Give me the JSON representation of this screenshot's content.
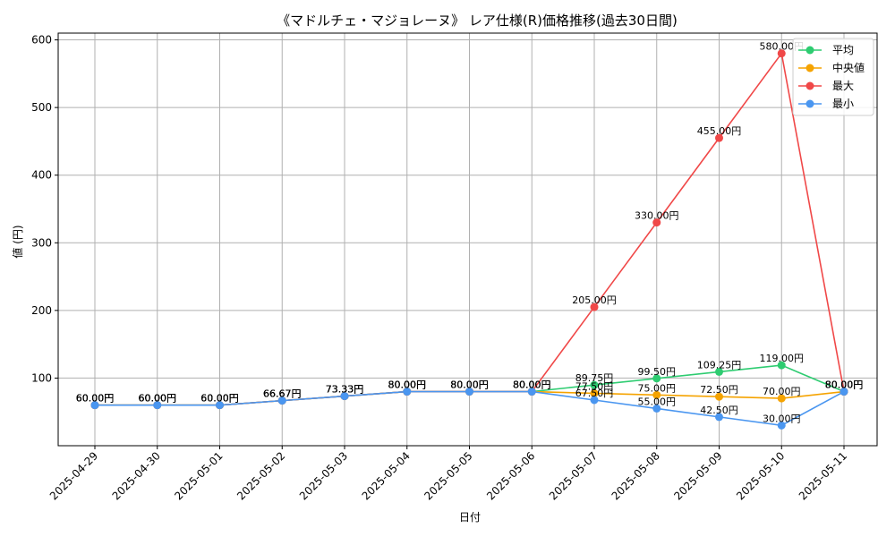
{
  "chart_data": {
    "type": "line",
    "title": "《マドルチェ・マジョレーヌ》 レア仕様(R)価格推移(過去30日間)",
    "xlabel": "日付",
    "ylabel": "値 (円)",
    "categories": [
      "2025-04-29",
      "2025-04-30",
      "2025-05-01",
      "2025-05-02",
      "2025-05-03",
      "2025-05-04",
      "2025-05-05",
      "2025-05-06",
      "2025-05-07",
      "2025-05-08",
      "2025-05-09",
      "2025-05-10",
      "2025-05-11"
    ],
    "ylim": [
      0,
      610
    ],
    "yticks": [
      100,
      200,
      300,
      400,
      500,
      600
    ],
    "grid": true,
    "legend_position": "top-right",
    "label_suffix": "円",
    "series": [
      {
        "name": "平均",
        "color": "#2ecc71",
        "values": [
          60.0,
          60.0,
          60.0,
          66.67,
          73.33,
          80.0,
          80.0,
          80.0,
          89.75,
          99.5,
          109.25,
          119.0,
          80.0
        ]
      },
      {
        "name": "中央値",
        "color": "#f5a300",
        "values": [
          60.0,
          60.0,
          60.0,
          66.67,
          73.33,
          80.0,
          80.0,
          80.0,
          77.5,
          75.0,
          72.5,
          70.0,
          80.0
        ]
      },
      {
        "name": "最大",
        "color": "#f04848",
        "values": [
          60.0,
          60.0,
          60.0,
          66.67,
          73.33,
          80.0,
          80.0,
          80.0,
          205.0,
          330.0,
          455.0,
          580.0,
          80.0
        ]
      },
      {
        "name": "最小",
        "color": "#4a96f0",
        "values": [
          60.0,
          60.0,
          60.0,
          66.67,
          73.33,
          80.0,
          80.0,
          80.0,
          67.5,
          55.0,
          42.5,
          30.0,
          80.0
        ]
      }
    ]
  }
}
